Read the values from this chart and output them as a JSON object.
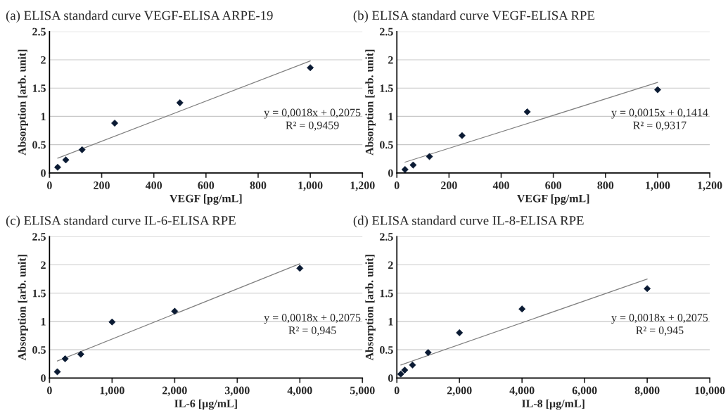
{
  "chart_data": [
    {
      "type": "scatter",
      "title": "(a) ELISA standard curve VEGF-ELISA ARPE-19",
      "xlabel": "VEGF [pg/mL]",
      "ylabel": "Absorption [arb. unit]",
      "series": [
        {
          "color": "#0a1a33",
          "marker": "diamond",
          "x": [
            31.25,
            62.5,
            125,
            250,
            500,
            1000
          ],
          "values": [
            0.1,
            0.23,
            0.41,
            0.88,
            1.24,
            1.86
          ]
        },
        {
          "type": "line",
          "color": "#808080",
          "marker": "none",
          "x": [
            31.25,
            1000
          ],
          "values": [
            0.26,
            1.98
          ]
        }
      ],
      "xlim": [
        0,
        1200
      ],
      "xticks": [
        0,
        200,
        400,
        600,
        800,
        {
          "value": 1000,
          "label": "1,000"
        },
        {
          "value": 1200,
          "label": "1,200"
        }
      ],
      "ylim": [
        0,
        2.5
      ],
      "yticks": [
        0,
        0.5,
        1,
        1.5,
        2,
        2.5
      ],
      "grid": "y",
      "annotations": [
        "y = 0,0018x + 0,2075",
        "R² = 0,9459"
      ]
    },
    {
      "type": "scatter",
      "title": "(b) ELISA standard curve VEGF-ELISA RPE",
      "xlabel": "VEGF [pg/mL]",
      "ylabel": "Absorption [arb. unit]",
      "series": [
        {
          "color": "#0a1a33",
          "marker": "diamond",
          "x": [
            31.25,
            62.5,
            125,
            250,
            500,
            1000
          ],
          "values": [
            0.06,
            0.14,
            0.29,
            0.66,
            1.08,
            1.47
          ]
        },
        {
          "type": "line",
          "color": "#808080",
          "marker": "none",
          "x": [
            31.25,
            1000
          ],
          "values": [
            0.19,
            1.6
          ]
        }
      ],
      "xlim": [
        0,
        1200
      ],
      "xticks": [
        0,
        200,
        400,
        600,
        800,
        {
          "value": 1000,
          "label": "1,000"
        },
        {
          "value": 1200,
          "label": "1,200"
        }
      ],
      "ylim": [
        0,
        2.5
      ],
      "yticks": [
        0,
        0.5,
        1,
        1.5,
        2,
        2.5
      ],
      "grid": "y",
      "annotations": [
        "y = 0,0015x + 0,1414",
        "R² = 0,9317"
      ]
    },
    {
      "type": "scatter",
      "title": "(c) ELISA standard curve IL-6-ELISA RPE",
      "xlabel": "IL-6 [µg/mL]",
      "ylabel": "Absorption [arb. unit]",
      "series": [
        {
          "color": "#0a1a33",
          "marker": "diamond",
          "x": [
            125,
            250,
            500,
            1000,
            2000,
            4000
          ],
          "values": [
            0.11,
            0.34,
            0.42,
            0.99,
            1.18,
            1.94
          ]
        },
        {
          "type": "line",
          "color": "#808080",
          "marker": "none",
          "x": [
            125,
            4000
          ],
          "values": [
            0.3,
            2.02
          ]
        }
      ],
      "xlim": [
        0,
        5000
      ],
      "xticks": [
        0,
        {
          "value": 1000,
          "label": "1,000"
        },
        {
          "value": 2000,
          "label": "2,000"
        },
        {
          "value": 3000,
          "label": "3,000"
        },
        {
          "value": 4000,
          "label": "4,000"
        },
        {
          "value": 5000,
          "label": "5,000"
        }
      ],
      "ylim": [
        0,
        2.5
      ],
      "yticks": [
        0,
        0.5,
        1,
        1.5,
        2,
        2.5
      ],
      "grid": "y",
      "annotations": [
        "y = 0,0018x + 0,2075",
        "R² = 0,945"
      ]
    },
    {
      "type": "scatter",
      "title": "(d) ELISA standard curve IL-8-ELISA RPE",
      "xlabel": "IL-8 [µg/mL]",
      "ylabel": "Absorption [arb. unit]",
      "series": [
        {
          "color": "#0a1a33",
          "marker": "diamond",
          "x": [
            125,
            250,
            500,
            1000,
            2000,
            4000,
            8000
          ],
          "values": [
            0.07,
            0.14,
            0.23,
            0.45,
            0.8,
            1.22,
            1.58
          ]
        },
        {
          "type": "line",
          "color": "#808080",
          "marker": "none",
          "x": [
            125,
            8000
          ],
          "values": [
            0.23,
            1.75
          ]
        }
      ],
      "xlim": [
        0,
        10000
      ],
      "xticks": [
        0,
        {
          "value": 2000,
          "label": "2,000"
        },
        {
          "value": 4000,
          "label": "4,000"
        },
        {
          "value": 6000,
          "label": "6,000"
        },
        {
          "value": 8000,
          "label": "8,000"
        },
        {
          "value": 10000,
          "label": "10,000"
        }
      ],
      "ylim": [
        0,
        2.5
      ],
      "yticks": [
        0,
        0.5,
        1,
        1.5,
        2,
        2.5
      ],
      "grid": "y",
      "annotations": [
        "y = 0,0018x + 0,2075",
        "R² = 0,945"
      ]
    }
  ]
}
